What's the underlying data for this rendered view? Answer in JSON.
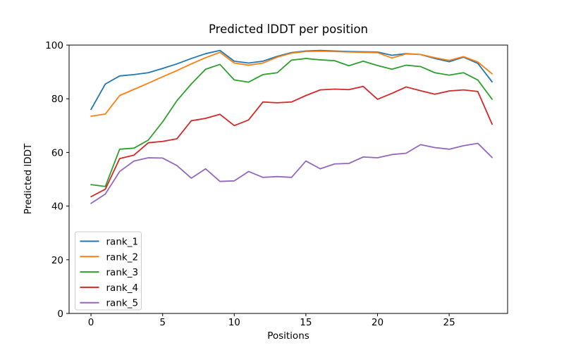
{
  "chart_data": {
    "type": "line",
    "title": "Predicted lDDT per position",
    "xlabel": "Positions",
    "ylabel": "Predicted lDDT",
    "x": [
      0,
      1,
      2,
      3,
      4,
      5,
      6,
      7,
      8,
      9,
      10,
      11,
      12,
      13,
      14,
      15,
      16,
      17,
      18,
      19,
      20,
      21,
      22,
      23,
      24,
      25,
      26,
      27,
      28
    ],
    "series": [
      {
        "name": "rank_1",
        "color": "#1f77b4",
        "values": [
          76.0,
          85.5,
          88.5,
          89.0,
          89.7,
          91.3,
          93.0,
          95.0,
          96.8,
          98.0,
          94.0,
          93.3,
          94.0,
          95.8,
          97.2,
          97.8,
          98.0,
          97.8,
          97.6,
          97.5,
          97.4,
          96.2,
          96.8,
          96.5,
          95.0,
          93.8,
          95.5,
          93.2,
          86.3
        ]
      },
      {
        "name": "rank_2",
        "color": "#ff7f0e",
        "values": [
          73.5,
          74.3,
          81.2,
          83.5,
          85.8,
          88.2,
          90.5,
          93.0,
          95.3,
          97.3,
          93.3,
          92.5,
          93.3,
          95.5,
          97.0,
          97.6,
          97.7,
          97.6,
          97.4,
          97.3,
          97.2,
          95.2,
          96.7,
          96.5,
          95.3,
          94.3,
          95.7,
          93.7,
          89.3
        ]
      },
      {
        "name": "rank_3",
        "color": "#2ca02c",
        "values": [
          48.0,
          47.3,
          61.2,
          61.6,
          64.6,
          71.4,
          79.3,
          85.5,
          91.0,
          92.8,
          87.0,
          86.2,
          89.0,
          89.7,
          94.4,
          95.0,
          94.5,
          94.2,
          92.3,
          94.0,
          92.4,
          91.0,
          92.5,
          92.0,
          89.7,
          88.8,
          89.7,
          87.0,
          79.8
        ]
      },
      {
        "name": "rank_4",
        "color": "#d62728",
        "values": [
          43.5,
          46.3,
          57.7,
          59.0,
          63.6,
          64.1,
          65.1,
          71.8,
          72.7,
          74.2,
          70.0,
          72.1,
          78.8,
          78.5,
          78.8,
          81.2,
          83.3,
          83.6,
          83.4,
          84.6,
          79.8,
          82.0,
          84.4,
          83.0,
          81.7,
          82.9,
          83.3,
          82.7,
          70.5
        ]
      },
      {
        "name": "rank_5",
        "color": "#9467bd",
        "values": [
          41.0,
          44.5,
          52.9,
          56.8,
          58.0,
          57.9,
          55.1,
          50.4,
          53.9,
          49.2,
          49.4,
          52.9,
          50.7,
          51.0,
          50.7,
          56.8,
          53.9,
          55.7,
          55.9,
          58.3,
          58.0,
          59.2,
          59.7,
          62.9,
          61.8,
          61.2,
          62.5,
          63.4,
          58.1
        ]
      }
    ],
    "xlim": [
      -1.53,
      29.08
    ],
    "ylim": [
      0,
      100
    ],
    "xticks": [
      0,
      5,
      10,
      15,
      20,
      25
    ],
    "yticks": [
      0,
      20,
      40,
      60,
      80,
      100
    ],
    "grid": false,
    "legend_position": "lower left",
    "legend_labels": [
      "rank_1",
      "rank_2",
      "rank_3",
      "rank_4",
      "rank_5"
    ]
  },
  "colors": {
    "background": "#ffffff",
    "spine": "#000000",
    "legend_border": "#cccccc",
    "legend_fill": "#ffffff"
  }
}
